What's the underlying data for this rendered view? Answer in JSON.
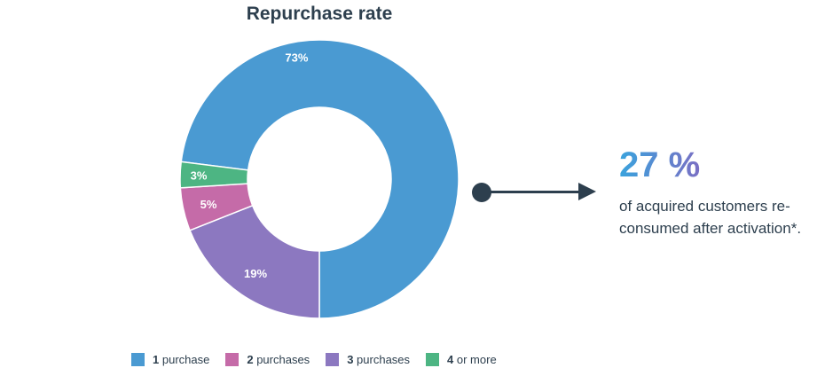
{
  "chart_data": {
    "type": "pie",
    "title": "Repurchase rate",
    "slices": [
      {
        "count": "1",
        "unit": "purchase",
        "value": 73,
        "label": "73%",
        "color": "#4a9ad2"
      },
      {
        "count": "2",
        "unit": "purchases",
        "value": 5,
        "label": "5%",
        "color": "#c56ba8"
      },
      {
        "count": "3",
        "unit": "purchases",
        "value": 19,
        "label": "19%",
        "color": "#8c78c0"
      },
      {
        "count": "4",
        "unit": "or more",
        "value": 3,
        "label": "3%",
        "color": "#4db583"
      }
    ],
    "donut": true,
    "legend_position": "bottom"
  },
  "callout": {
    "stat": "27 %",
    "description": "of acquired customers re-consumed after activation*."
  }
}
